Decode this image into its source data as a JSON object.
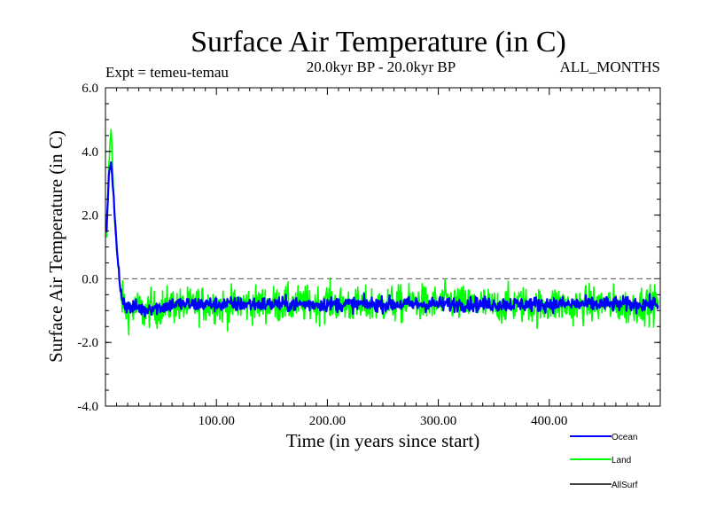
{
  "chart_data": {
    "type": "line",
    "title": "Surface Air Temperature (in C)",
    "experiment": "Expt = temeu-temau",
    "period": "20.0kyr BP - 20.0kyr BP",
    "months": "ALL_MONTHS",
    "xlabel": "Time (in years since start)",
    "ylabel": "Surface Air Temperature (in C)",
    "xlim": [
      0,
      500
    ],
    "ylim": [
      -4,
      6
    ],
    "x_ticks": [
      100,
      200,
      300,
      400
    ],
    "x_tick_labels": [
      "100.00",
      "200.00",
      "300.00",
      "400.00"
    ],
    "y_ticks": [
      -4,
      -2,
      0,
      2,
      4,
      6
    ],
    "y_tick_labels": [
      "-4.0",
      "-2.0",
      "0.0",
      "2.0",
      "4.0",
      "6.0"
    ],
    "zero_line": 0,
    "series": [
      {
        "name": "Land",
        "color": "#00ff00",
        "x": [
          1,
          3,
          5,
          7,
          9,
          11,
          13,
          16,
          20,
          25,
          30,
          35,
          40,
          45,
          50,
          60,
          70,
          80,
          90,
          100,
          110,
          120,
          130,
          140,
          150,
          160,
          170,
          180,
          190,
          200,
          210,
          220,
          230,
          240,
          250,
          260,
          270,
          280,
          290,
          300,
          310,
          320,
          330,
          340,
          350,
          360,
          370,
          380,
          390,
          400,
          410,
          420,
          430,
          440,
          450,
          460,
          470,
          480,
          490,
          498
        ],
        "y": [
          1.2,
          3.5,
          4.8,
          3.0,
          1.5,
          0.5,
          -0.3,
          -0.8,
          -1.0,
          -1.0,
          -0.9,
          -1.1,
          -0.9,
          -1.0,
          -0.9,
          -0.8,
          -0.9,
          -0.8,
          -0.8,
          -0.8,
          -0.9,
          -0.8,
          -0.8,
          -0.8,
          -0.8,
          -0.8,
          -0.8,
          -0.8,
          -0.8,
          -0.7,
          -0.8,
          -0.8,
          -0.9,
          -0.8,
          -0.8,
          -0.8,
          -0.8,
          -0.7,
          -0.8,
          -0.8,
          -0.7,
          -0.8,
          -0.8,
          -0.8,
          -0.9,
          -0.8,
          -0.8,
          -0.8,
          -0.9,
          -0.8,
          -0.8,
          -0.9,
          -0.8,
          -0.8,
          -0.8,
          -0.8,
          -0.9,
          -0.8,
          -0.8,
          -0.8
        ],
        "variability": 0.75
      },
      {
        "name": "Ocean",
        "color": "#0000ff",
        "x": [
          1,
          3,
          5,
          7,
          9,
          11,
          13,
          16,
          20,
          25,
          30,
          35,
          40,
          45,
          50,
          60,
          70,
          80,
          90,
          100,
          110,
          120,
          130,
          140,
          150,
          160,
          170,
          180,
          190,
          200,
          210,
          220,
          230,
          240,
          250,
          260,
          270,
          280,
          290,
          300,
          310,
          320,
          330,
          340,
          350,
          360,
          370,
          380,
          390,
          400,
          410,
          420,
          430,
          440,
          450,
          460,
          470,
          480,
          490,
          498
        ],
        "y": [
          1.5,
          3.2,
          3.7,
          2.8,
          1.6,
          0.6,
          -0.2,
          -0.7,
          -0.9,
          -0.9,
          -0.9,
          -1.0,
          -0.9,
          -0.9,
          -0.9,
          -0.8,
          -0.8,
          -0.8,
          -0.8,
          -0.8,
          -0.8,
          -0.8,
          -0.8,
          -0.8,
          -0.8,
          -0.8,
          -0.8,
          -0.8,
          -0.8,
          -0.8,
          -0.8,
          -0.8,
          -0.8,
          -0.8,
          -0.8,
          -0.8,
          -0.8,
          -0.8,
          -0.8,
          -0.8,
          -0.8,
          -0.8,
          -0.8,
          -0.8,
          -0.8,
          -0.8,
          -0.8,
          -0.8,
          -0.8,
          -0.8,
          -0.8,
          -0.8,
          -0.8,
          -0.8,
          -0.8,
          -0.8,
          -0.8,
          -0.8,
          -0.8,
          -0.8
        ],
        "variability": 0.3
      },
      {
        "name": "AllSurf",
        "color": "#000000",
        "x": [],
        "y": []
      }
    ],
    "legend": [
      "Ocean",
      "Land",
      "AllSurf"
    ]
  }
}
